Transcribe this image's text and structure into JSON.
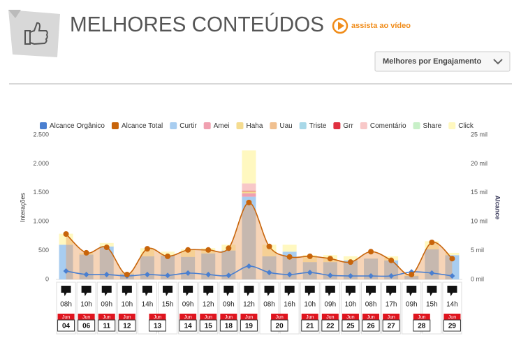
{
  "header": {
    "title": "MELHORES CONTEÚDOS",
    "video_link": "assista ao vídeo",
    "dropdown": "Melhores por Engajamento"
  },
  "chart_data": {
    "type": "bar",
    "y_label": "Interações",
    "y2_label": "Alcance",
    "categories": [
      "08h",
      "10h",
      "09h",
      "10h",
      "14h",
      "15h",
      "09h",
      "12h",
      "09h",
      "12h",
      "08h",
      "16h",
      "10h",
      "09h",
      "10h",
      "08h",
      "17h",
      "09h",
      "15h",
      "14h"
    ],
    "months": [
      "Jun",
      "Jun",
      "Jun",
      "Jun",
      "Jun",
      "Jun",
      "Jun",
      "Jun",
      "Jun",
      "Jun",
      "Jun",
      "Jun",
      "Jun",
      "Jun",
      "Jun",
      "Jun",
      "Jun",
      "Jun",
      "Jun",
      "Jun"
    ],
    "days": [
      "04",
      "06",
      "11",
      "12",
      "13",
      "13",
      "14",
      "15",
      "18",
      "19",
      "20",
      "20",
      "21",
      "22",
      "25",
      "26",
      "27",
      "28",
      "28",
      "29"
    ],
    "ylim": [
      0,
      2500
    ],
    "yticks": [
      0,
      500,
      {
        "value": 1000,
        "label": "1.000"
      },
      {
        "value": 1500,
        "label": "1.500"
      },
      {
        "value": 2000,
        "label": "2.000"
      },
      {
        "value": 2500,
        "label": "2.500"
      }
    ],
    "y2lim": [
      0,
      25000
    ],
    "y2ticks": [
      {
        "value": 0,
        "label": "0 mil"
      },
      {
        "value": 5000,
        "label": "5 mil"
      },
      {
        "value": 10000,
        "label": "10 mil"
      },
      {
        "value": 15000,
        "label": "15 mil"
      },
      {
        "value": 20000,
        "label": "20 mil"
      },
      {
        "value": 25000,
        "label": "25 mil"
      }
    ],
    "grid": false,
    "series": [
      {
        "name": "Alcance Orgânico",
        "type": "line",
        "marker": "diamond",
        "axis": "y2",
        "color": "#4a7fd0",
        "values": [
          1450,
          850,
          850,
          600,
          850,
          700,
          1100,
          850,
          700,
          2300,
          1200,
          850,
          1200,
          700,
          600,
          600,
          600,
          1300,
          1100,
          600
        ]
      },
      {
        "name": "Alcance Total",
        "type": "area",
        "marker": "circle",
        "axis": "y2",
        "color": "#c8640a",
        "values": [
          7850,
          4600,
          5550,
          850,
          5300,
          4000,
          5100,
          5100,
          5400,
          13300,
          5700,
          3900,
          4000,
          3600,
          3000,
          4800,
          3300,
          850,
          6400,
          3600
        ]
      },
      {
        "name": "Curtir",
        "type": "bar",
        "color": "#a8cdf0",
        "values": [
          600,
          430,
          570,
          100,
          400,
          410,
          390,
          450,
          500,
          1430,
          400,
          480,
          300,
          300,
          330,
          360,
          330,
          60,
          520,
          420
        ]
      },
      {
        "name": "Amei",
        "type": "bar",
        "color": "#f0a0b0",
        "values": [
          0,
          0,
          0,
          0,
          0,
          0,
          0,
          0,
          0,
          60,
          0,
          0,
          0,
          0,
          0,
          0,
          0,
          0,
          0,
          0
        ]
      },
      {
        "name": "Haha",
        "type": "bar",
        "color": "#f5dc90",
        "values": [
          0,
          0,
          0,
          0,
          0,
          0,
          0,
          0,
          0,
          30,
          0,
          0,
          0,
          0,
          0,
          0,
          0,
          0,
          0,
          0
        ]
      },
      {
        "name": "Uau",
        "type": "bar",
        "color": "#f0c090",
        "values": [
          0,
          0,
          0,
          0,
          0,
          0,
          0,
          0,
          0,
          0,
          0,
          0,
          0,
          0,
          0,
          0,
          0,
          0,
          0,
          0
        ]
      },
      {
        "name": "Triste",
        "type": "bar",
        "color": "#a8d8e8",
        "values": [
          0,
          0,
          0,
          0,
          0,
          0,
          0,
          0,
          0,
          0,
          0,
          0,
          0,
          0,
          0,
          0,
          0,
          0,
          0,
          0
        ]
      },
      {
        "name": "Grr",
        "type": "bar",
        "color": "#e03040",
        "values": [
          0,
          0,
          0,
          0,
          0,
          0,
          0,
          0,
          0,
          10,
          0,
          0,
          0,
          0,
          0,
          0,
          0,
          0,
          0,
          0
        ]
      },
      {
        "name": "Comentário",
        "type": "bar",
        "color": "#f8c8c8",
        "values": [
          0,
          0,
          0,
          0,
          0,
          0,
          0,
          0,
          0,
          130,
          0,
          0,
          0,
          0,
          0,
          0,
          0,
          0,
          0,
          0
        ]
      },
      {
        "name": "Share",
        "type": "bar",
        "color": "#c8f0c8",
        "values": [
          0,
          0,
          0,
          0,
          0,
          0,
          0,
          0,
          0,
          0,
          0,
          0,
          0,
          0,
          0,
          0,
          0,
          0,
          0,
          0
        ]
      },
      {
        "name": "Click",
        "type": "bar",
        "color": "#fff8c0",
        "values": [
          190,
          30,
          60,
          20,
          140,
          70,
          130,
          90,
          100,
          570,
          200,
          120,
          120,
          120,
          70,
          0,
          70,
          20,
          140,
          40
        ]
      }
    ]
  }
}
